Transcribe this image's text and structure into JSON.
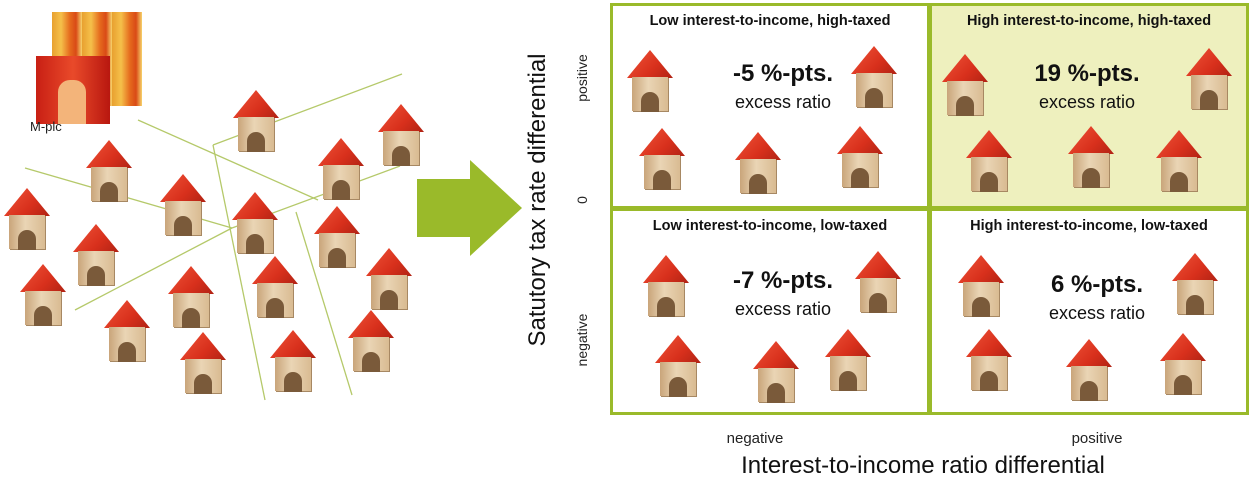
{
  "left": {
    "entity_label": "M-plc"
  },
  "axes": {
    "y_label": "Satutory tax rate differential",
    "y_ticks": {
      "top": "positive",
      "mid": "0",
      "bottom": "negative"
    },
    "x_label": "Interest-to-income ratio differential",
    "x_ticks": {
      "left": "negative",
      "right": "positive"
    }
  },
  "quadrants": {
    "top_left": {
      "title": "Low interest-to-income, high-taxed",
      "value": "-5 %-pts.",
      "sub": "excess ratio"
    },
    "top_right": {
      "title": "High interest-to-income, high-taxed",
      "value": "19 %-pts.",
      "sub": "excess ratio"
    },
    "bottom_left": {
      "title": "Low interest-to-income, low-taxed",
      "value": "-7 %-pts.",
      "sub": "excess ratio"
    },
    "bottom_right": {
      "title": "High interest-to-income, low-taxed",
      "value": "6 %-pts.",
      "sub": "excess ratio"
    }
  },
  "colors": {
    "accent": "#9aba2a",
    "highlight": "#eef0be",
    "roof": "#d8301c"
  }
}
